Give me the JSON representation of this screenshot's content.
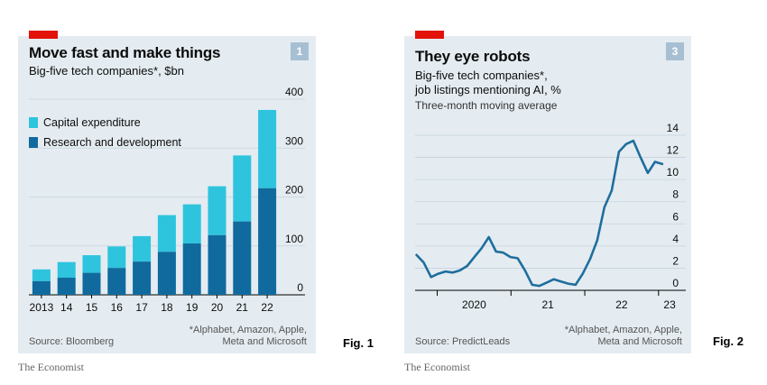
{
  "figures": [
    {
      "title": "Move fast and make things",
      "subtitle": "Big-five tech companies*, $bn",
      "badge": "1",
      "legend": [
        "Capital expenditure",
        "Research and development"
      ],
      "source": "Source: Bloomberg",
      "footnote_line1": "*Alphabet, Amazon, Apple,",
      "footnote_line2": "Meta and Microsoft",
      "publisher": "The Economist",
      "fig_label": "Fig. 1"
    },
    {
      "title": "They eye robots",
      "subtitle_line1": "Big-five tech companies*,",
      "subtitle_line2": "job listings mentioning AI, %",
      "note": "Three-month moving average",
      "badge": "3",
      "source": "Source: PredictLeads",
      "footnote_line1": "*Alphabet, Amazon, Apple,",
      "footnote_line2": "Meta and Microsoft",
      "publisher": "The Economist",
      "fig_label": "Fig. 2"
    }
  ],
  "colors": {
    "panel_bg": "#e4ecf1",
    "capex": "#2ec4dd",
    "rnd": "#106a9e",
    "line": "#1f6e9e",
    "accent_red": "#e3120b",
    "badge": "#a7bfd2",
    "grid": "#c5d3dd"
  },
  "chart_data": [
    {
      "type": "bar",
      "stacked": true,
      "categories": [
        "2013",
        "14",
        "15",
        "16",
        "17",
        "18",
        "19",
        "20",
        "21",
        "22"
      ],
      "series": [
        {
          "name": "Research and development",
          "values": [
            28,
            35,
            45,
            55,
            68,
            88,
            105,
            122,
            150,
            218
          ]
        },
        {
          "name": "Capital expenditure",
          "values": [
            24,
            32,
            36,
            44,
            52,
            75,
            80,
            100,
            135,
            160
          ]
        }
      ],
      "ylim": [
        0,
        400
      ],
      "yticks": [
        "0",
        "100",
        "200",
        "300",
        "400"
      ],
      "grid": true,
      "legend_position": "top-left"
    },
    {
      "type": "line",
      "x_labels": [
        "2020",
        "21",
        "22",
        "23"
      ],
      "series": [
        {
          "values": [
            3.2,
            2.5,
            1.2,
            1.5,
            1.7,
            1.6,
            1.8,
            2.2,
            3.0,
            3.8,
            4.8,
            3.5,
            3.4,
            3.0,
            2.9,
            1.8,
            0.5,
            0.4,
            0.7,
            1.0,
            0.8,
            0.6,
            0.5,
            1.5,
            2.8,
            4.5,
            7.5,
            9.0,
            12.5,
            13.2,
            13.5,
            12.0,
            10.6,
            11.6,
            11.4
          ]
        }
      ],
      "x_start_year": 2019.7,
      "x_end_year": 2023.1,
      "ylim": [
        0,
        14
      ],
      "yticks": [
        "0",
        "2",
        "4",
        "6",
        "8",
        "10",
        "12",
        "14"
      ],
      "grid": true
    }
  ]
}
